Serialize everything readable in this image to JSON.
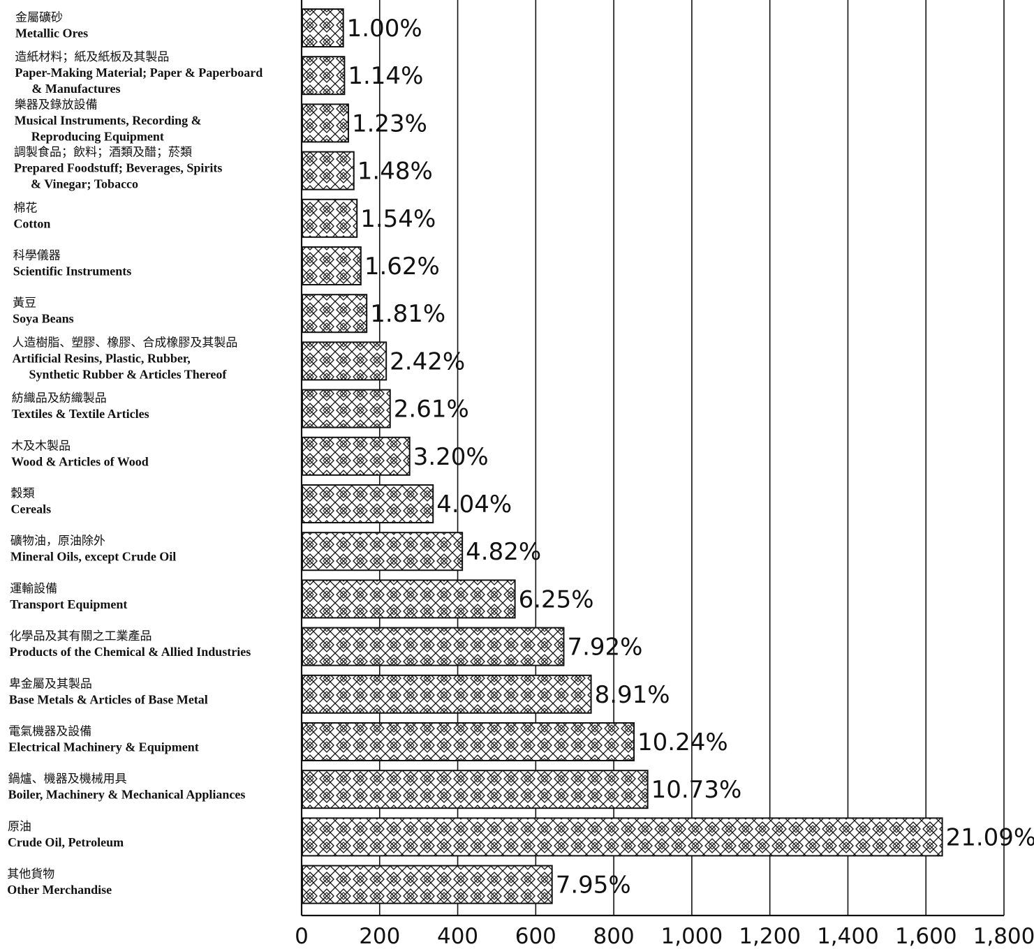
{
  "chart_data": {
    "type": "bar",
    "orientation": "horizontal",
    "bar_pattern": "crosshatch-diamond",
    "grid": true,
    "xlim": [
      0,
      1800
    ],
    "x_ticks": [
      "0",
      "200",
      "400",
      "600",
      "800",
      "1,000",
      "1,200",
      "1,400",
      "1,600",
      "1,800"
    ],
    "x_tick_values": [
      0,
      200,
      400,
      600,
      800,
      1000,
      1200,
      1400,
      1600,
      1800
    ],
    "categories": [
      {
        "zh": "金屬礦砂",
        "en": [
          "Metallic Ores"
        ],
        "value": 105,
        "label": "1.00%"
      },
      {
        "zh": "造紙材料；紙及紙板及其製品",
        "en": [
          "Paper-Making Material; Paper & Paperboard",
          "& Manufactures"
        ],
        "value": 108,
        "label": "1.14%"
      },
      {
        "zh": "樂器及錄放設備",
        "en": [
          "Musical Instruments, Recording &",
          "Reproducing Equipment"
        ],
        "value": 118,
        "label": "1.23%"
      },
      {
        "zh": "調製食品；飲料；酒類及醋；菸類",
        "en": [
          "Prepared Foodstuff; Beverages, Spirits",
          "& Vinegar; Tobacco"
        ],
        "value": 132,
        "label": "1.48%"
      },
      {
        "zh": "棉花",
        "en": [
          "Cotton"
        ],
        "value": 140,
        "label": "1.54%"
      },
      {
        "zh": "科學儀器",
        "en": [
          "Scientific Instruments"
        ],
        "value": 150,
        "label": "1.62%"
      },
      {
        "zh": "黃豆",
        "en": [
          "Soya Beans"
        ],
        "value": 165,
        "label": "1.81%"
      },
      {
        "zh": "人造樹脂、塑膠、橡膠、合成橡膠及其製品",
        "en": [
          "Artificial Resins, Plastic, Rubber,",
          "Synthetic Rubber & Articles Thereof"
        ],
        "value": 215,
        "label": "2.42%"
      },
      {
        "zh": "紡織品及紡織製品",
        "en": [
          "Textiles & Textile Articles"
        ],
        "value": 225,
        "label": "2.61%"
      },
      {
        "zh": "木及木製品",
        "en": [
          "Wood & Articles of Wood"
        ],
        "value": 275,
        "label": "3.20%"
      },
      {
        "zh": "穀類",
        "en": [
          "Cereals"
        ],
        "value": 335,
        "label": "4.04%"
      },
      {
        "zh": "礦物油，原油除外",
        "en": [
          "Mineral Oils, except Crude Oil"
        ],
        "value": 410,
        "label": "4.82%"
      },
      {
        "zh": "運輸設備",
        "en": [
          "Transport Equipment"
        ],
        "value": 545,
        "label": "6.25%"
      },
      {
        "zh": "化學品及其有關之工業產品",
        "en": [
          "Products of the Chemical & Allied Industries"
        ],
        "value": 670,
        "label": "7.92%"
      },
      {
        "zh": "卑金屬及其製品",
        "en": [
          "Base Metals & Articles of Base Metal"
        ],
        "value": 740,
        "label": "8.91%"
      },
      {
        "zh": "電氣機器及設備",
        "en": [
          "Electrical Machinery & Equipment"
        ],
        "value": 850,
        "label": "10.24%"
      },
      {
        "zh": "鍋爐、機器及機械用具",
        "en": [
          "Boiler, Machinery & Mechanical Appliances"
        ],
        "value": 885,
        "label": "10.73%"
      },
      {
        "zh": "原油",
        "en": [
          "Crude Oil, Petroleum"
        ],
        "value": 1640,
        "label": "21.09%"
      },
      {
        "zh": "其他貨物",
        "en": [
          "Other Merchandise"
        ],
        "value": 640,
        "label": "7.95%"
      }
    ]
  }
}
